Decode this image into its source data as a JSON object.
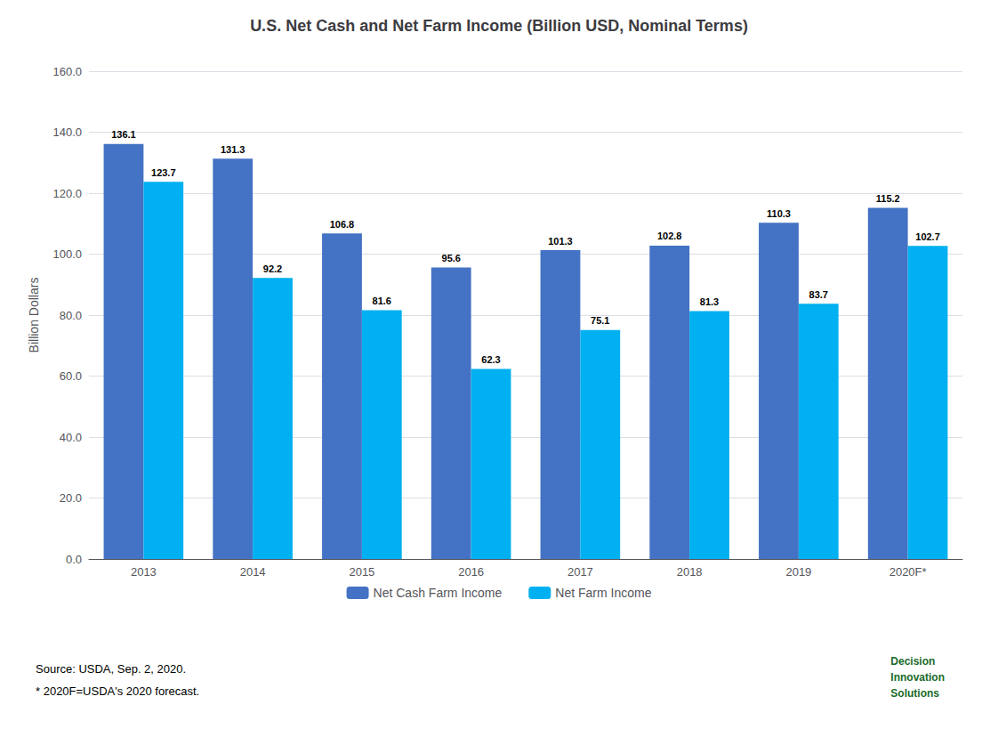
{
  "chart_data": {
    "type": "bar",
    "title": "U.S. Net Cash and Net Farm Income (Billion USD, Nominal Terms)",
    "ylabel": "Billion Dollars",
    "categories": [
      "2013",
      "2014",
      "2015",
      "2016",
      "2017",
      "2018",
      "2019",
      "2020F*"
    ],
    "series": [
      {
        "name": "Net Cash Farm Income",
        "color": "#4472C4",
        "values": [
          136.1,
          131.3,
          106.8,
          95.6,
          101.3,
          102.8,
          110.3,
          115.2
        ]
      },
      {
        "name": "Net Farm Income",
        "color": "#00B0F0",
        "values": [
          123.7,
          92.2,
          81.6,
          62.3,
          75.1,
          81.3,
          83.7,
          102.7
        ]
      }
    ],
    "ylim": [
      0,
      160
    ],
    "yticks": [
      {
        "value": 0,
        "label": "0.0"
      },
      {
        "value": 20,
        "label": "20.0"
      },
      {
        "value": 40,
        "label": "40.0"
      },
      {
        "value": 60,
        "label": "60.0"
      },
      {
        "value": 80,
        "label": "80.0"
      },
      {
        "value": 100,
        "label": "100.0"
      },
      {
        "value": 120,
        "label": "120.0"
      },
      {
        "value": 140,
        "label": "140.0"
      },
      {
        "value": 160,
        "label": "160.0"
      }
    ],
    "grid": true,
    "legend": "bottom",
    "data_labels": true,
    "annotations": [
      "Source: USDA, Sep. 2, 2020.",
      "* 2020F=USDA's 2020 forecast.",
      "Decision\nInnovation\nSolutions"
    ]
  }
}
